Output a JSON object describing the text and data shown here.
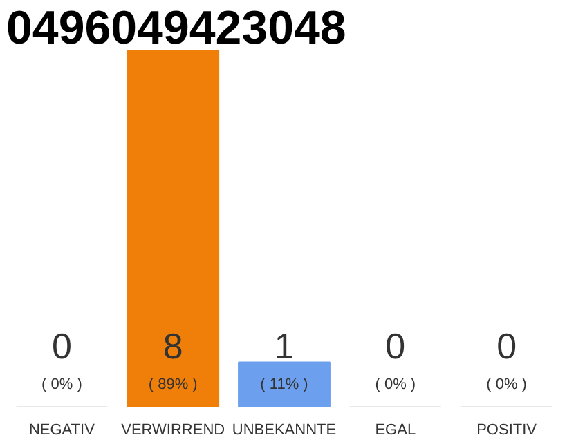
{
  "chart_data": {
    "type": "bar",
    "title": "0496049423048",
    "categories": [
      "NEGATIV",
      "VERWIRREND",
      "UNBEKANNTE",
      "EGAL",
      "POSITIV"
    ],
    "values": [
      0,
      8,
      1,
      0,
      0
    ],
    "colors": [
      "#e8e8e8",
      "#f07f09",
      "#6ca0ef",
      "#e8e8e8",
      "#e8e8e8"
    ],
    "data_labels": true,
    "annotations": [
      "( 0% )",
      "( 89% )",
      "( 11% )",
      "( 0% )",
      "( 0% )"
    ]
  }
}
